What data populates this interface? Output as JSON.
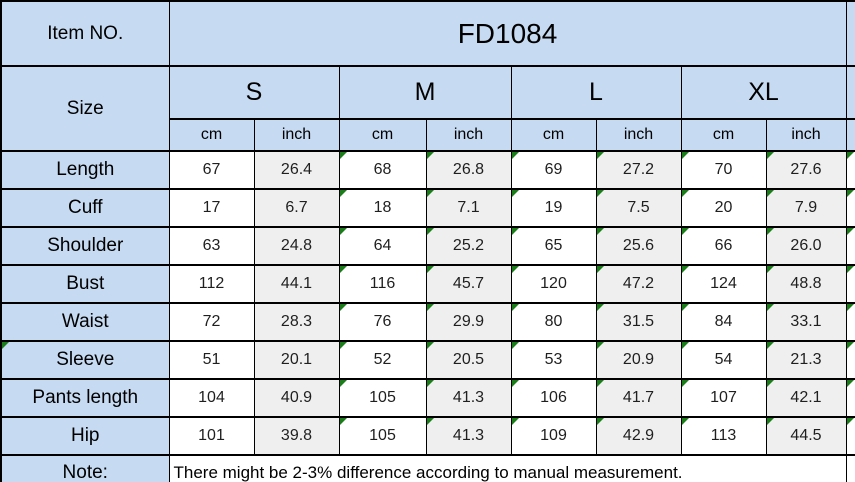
{
  "item": {
    "label": "Item NO.",
    "value": "FD1084"
  },
  "size_header": {
    "label": "Size",
    "groups": [
      "S",
      "M",
      "L",
      "XL"
    ],
    "units": [
      "cm",
      "inch",
      "cm",
      "inch",
      "cm",
      "inch",
      "cm",
      "inch"
    ]
  },
  "measurements": [
    {
      "label": "Length",
      "label_flag": false,
      "values": [
        "67",
        "26.4",
        "68",
        "26.8",
        "69",
        "27.2",
        "70",
        "27.6"
      ]
    },
    {
      "label": "Cuff",
      "label_flag": false,
      "values": [
        "17",
        "6.7",
        "18",
        "7.1",
        "19",
        "7.5",
        "20",
        "7.9"
      ]
    },
    {
      "label": "Shoulder",
      "label_flag": false,
      "values": [
        "63",
        "24.8",
        "64",
        "25.2",
        "65",
        "25.6",
        "66",
        "26.0"
      ]
    },
    {
      "label": "Bust",
      "label_flag": false,
      "values": [
        "112",
        "44.1",
        "116",
        "45.7",
        "120",
        "47.2",
        "124",
        "48.8"
      ]
    },
    {
      "label": "Waist",
      "label_flag": false,
      "values": [
        "72",
        "28.3",
        "76",
        "29.9",
        "80",
        "31.5",
        "84",
        "33.1"
      ]
    },
    {
      "label": "Sleeve",
      "label_flag": true,
      "values": [
        "51",
        "20.1",
        "52",
        "20.5",
        "53",
        "20.9",
        "54",
        "21.3"
      ]
    },
    {
      "label": "Pants length",
      "label_flag": false,
      "values": [
        "104",
        "40.9",
        "105",
        "41.3",
        "106",
        "41.7",
        "107",
        "42.1"
      ]
    },
    {
      "label": "Hip",
      "label_flag": false,
      "values": [
        "101",
        "39.8",
        "105",
        "41.3",
        "109",
        "42.9",
        "113",
        "44.5"
      ]
    }
  ],
  "error_flags": {
    "flagged_value_columns": [
      2,
      3,
      4,
      5,
      6,
      7
    ],
    "sliver_column_flagged": true,
    "color": "#1a7d1a"
  },
  "note": {
    "label": "Note:",
    "text": "There might be 2-3% difference according to manual measurement."
  },
  "colors": {
    "header_bg": "#c6daf2",
    "inch_bg": "#efefef",
    "cm_bg": "#ffffff",
    "border": "#000000",
    "value_text": "#1f1f1f"
  }
}
